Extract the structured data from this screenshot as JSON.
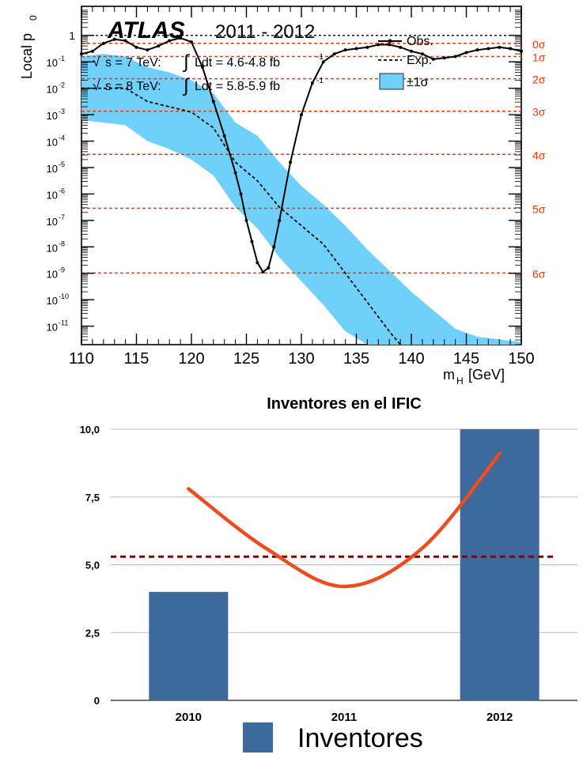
{
  "chart_data": [
    {
      "type": "line",
      "experiment": "ATLAS",
      "period": "2011 - 2012",
      "energy_lines": [
        {
          "sqrt_s": "s = 7 TeV:",
          "lumi": "Ldt = 4.6-4.8 fb",
          "exp": "-1"
        },
        {
          "sqrt_s": "s = 8 TeV:",
          "lumi": "Ldt = 5.8-5.9 fb",
          "exp": "-1"
        }
      ],
      "ylabel": "Local p",
      "ylabel_sub": "0",
      "xlabel": "m",
      "xlabel_sub": "H",
      "xlabel_unit": "[GeV]",
      "log_y": true,
      "xlim": [
        110,
        150
      ],
      "ylim_exp": [
        -11.7,
        1.1
      ],
      "x_ticks": [
        "110",
        "115",
        "120",
        "125",
        "130",
        "135",
        "140",
        "145",
        "150"
      ],
      "y_tick_major": "1",
      "y_tick_base": "10",
      "y_tick_exps": [
        "-1",
        "-2",
        "-3",
        "-4",
        "-5",
        "-6",
        "-7",
        "-8",
        "-9",
        "-10",
        "-11"
      ],
      "legend": {
        "observed": "Obs.",
        "expected": "Exp.",
        "band": "±1σ"
      },
      "sigma_lines": [
        {
          "label": "0σ",
          "log_p": -0.3
        },
        {
          "label": "1σ",
          "log_p": -0.8
        },
        {
          "label": "2σ",
          "log_p": -1.64
        },
        {
          "label": "3σ",
          "log_p": -2.87
        },
        {
          "label": "4σ",
          "log_p": -4.5
        },
        {
          "label": "5σ",
          "log_p": -6.54
        },
        {
          "label": "6σ",
          "log_p": -8.99
        }
      ],
      "series": [
        {
          "name": "Obs.",
          "x": [
            110,
            111,
            112,
            113,
            114,
            115,
            116,
            117,
            118,
            119,
            120,
            121,
            122,
            123,
            124,
            124.5,
            125,
            125.5,
            126,
            126.5,
            127,
            127.5,
            128,
            129,
            130,
            131,
            132,
            133,
            134,
            135,
            136,
            137,
            138,
            139,
            140,
            141,
            142,
            143,
            144,
            145,
            146,
            147,
            148,
            149,
            150
          ],
          "log_p": [
            -0.7,
            -0.6,
            -0.3,
            -0.15,
            -0.2,
            -0.45,
            -0.55,
            -0.4,
            -0.2,
            -0.1,
            -0.25,
            -1.2,
            -2.5,
            -3.8,
            -5.2,
            -6.0,
            -7.0,
            -7.8,
            -8.6,
            -8.95,
            -8.8,
            -8.0,
            -7.0,
            -4.8,
            -3.0,
            -1.8,
            -1.0,
            -0.7,
            -0.55,
            -0.5,
            -0.45,
            -0.35,
            -0.35,
            -0.45,
            -0.6,
            -0.7,
            -0.9,
            -0.85,
            -0.8,
            -0.65,
            -0.55,
            -0.5,
            -0.45,
            -0.5,
            -0.6
          ]
        },
        {
          "name": "Exp.",
          "x": [
            110,
            112,
            114,
            116,
            118,
            120,
            122,
            124,
            126,
            128,
            130,
            132,
            134,
            136,
            138,
            139
          ],
          "log_p": [
            -2.0,
            -2.0,
            -2.0,
            -2.5,
            -2.7,
            -2.9,
            -3.5,
            -4.8,
            -5.5,
            -6.5,
            -7.2,
            -7.9,
            -9.0,
            -10.1,
            -11.2,
            -11.7
          ]
        }
      ],
      "band": {
        "x": [
          110,
          112,
          114,
          116,
          118,
          120,
          122,
          124,
          126,
          128,
          130,
          132,
          134,
          136,
          138,
          140,
          142,
          144,
          146,
          148,
          150
        ],
        "upper": [
          -0.8,
          -0.7,
          -0.8,
          -1.2,
          -1.4,
          -1.7,
          -2.2,
          -3.3,
          -3.8,
          -4.8,
          -5.7,
          -6.4,
          -7.2,
          -8.1,
          -8.9,
          -9.7,
          -10.4,
          -11.1,
          -11.4,
          -11.5,
          -11.6
        ],
        "lower": [
          -3.2,
          -3.3,
          -3.4,
          -4.0,
          -4.3,
          -4.7,
          -5.3,
          -6.5,
          -7.3,
          -8.4,
          -9.3,
          -10.2,
          -11.2,
          -11.7,
          -11.7,
          -11.7,
          -11.7,
          -11.7,
          -11.7,
          -11.7,
          -11.7
        ]
      }
    },
    {
      "type": "bar",
      "title": "Inventores en el IFIC",
      "categories": [
        "2010",
        "2011",
        "2012"
      ],
      "values": [
        4.0,
        0,
        10.0
      ],
      "ylim": [
        0,
        10
      ],
      "y_ticks": [
        "0",
        "2,5",
        "5,0",
        "7,5",
        "10,0"
      ],
      "legend": "Inventores",
      "bar_color": "#3d6a9c",
      "trend_color": "#f04a1f",
      "reference_color": "#8b0000",
      "reference_value": 5.3,
      "trend_points": [
        {
          "x": 0.0,
          "y": 7.8
        },
        {
          "x": 0.5,
          "y": 5.6
        },
        {
          "x": 1.0,
          "y": 4.2
        },
        {
          "x": 1.5,
          "y": 5.6
        },
        {
          "x": 2.0,
          "y": 9.1
        }
      ]
    }
  ]
}
